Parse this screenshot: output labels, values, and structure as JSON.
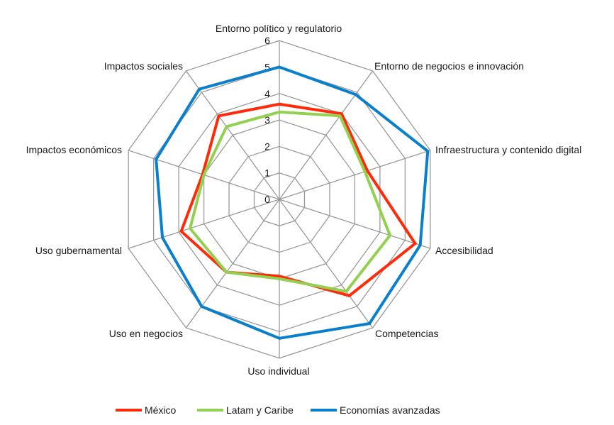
{
  "chart_data": {
    "type": "radar",
    "title": "",
    "categories": [
      "Entorno político y regulatorio",
      "Entorno de negocios e innovación",
      "Infraestructura y contenido digital",
      "Accesibilidad",
      "Competencias",
      "Uso individual",
      "Uso en negocios",
      "Uso gubernamental",
      "Impactos económicos",
      "Impactos sociales"
    ],
    "rlim": [
      0,
      6
    ],
    "ticks": [
      "0",
      "1",
      "2",
      "3",
      "4",
      "5",
      "6"
    ],
    "grid": true,
    "legend_position": "bottom",
    "series": [
      {
        "name": "México",
        "color": "#ff2a0a",
        "values": [
          3.6,
          4.0,
          3.5,
          5.4,
          4.5,
          2.9,
          3.4,
          3.9,
          3.05,
          3.9
        ]
      },
      {
        "name": "Latam y Caribe",
        "color": "#92d050",
        "values": [
          3.3,
          3.9,
          3.4,
          4.4,
          4.3,
          3.0,
          3.4,
          3.55,
          3.0,
          3.4
        ]
      },
      {
        "name": "Economías avanzadas",
        "color": "#0a7fcc",
        "values": [
          5.0,
          4.9,
          5.9,
          5.6,
          5.8,
          5.25,
          5.0,
          4.65,
          4.9,
          5.15
        ]
      }
    ]
  }
}
